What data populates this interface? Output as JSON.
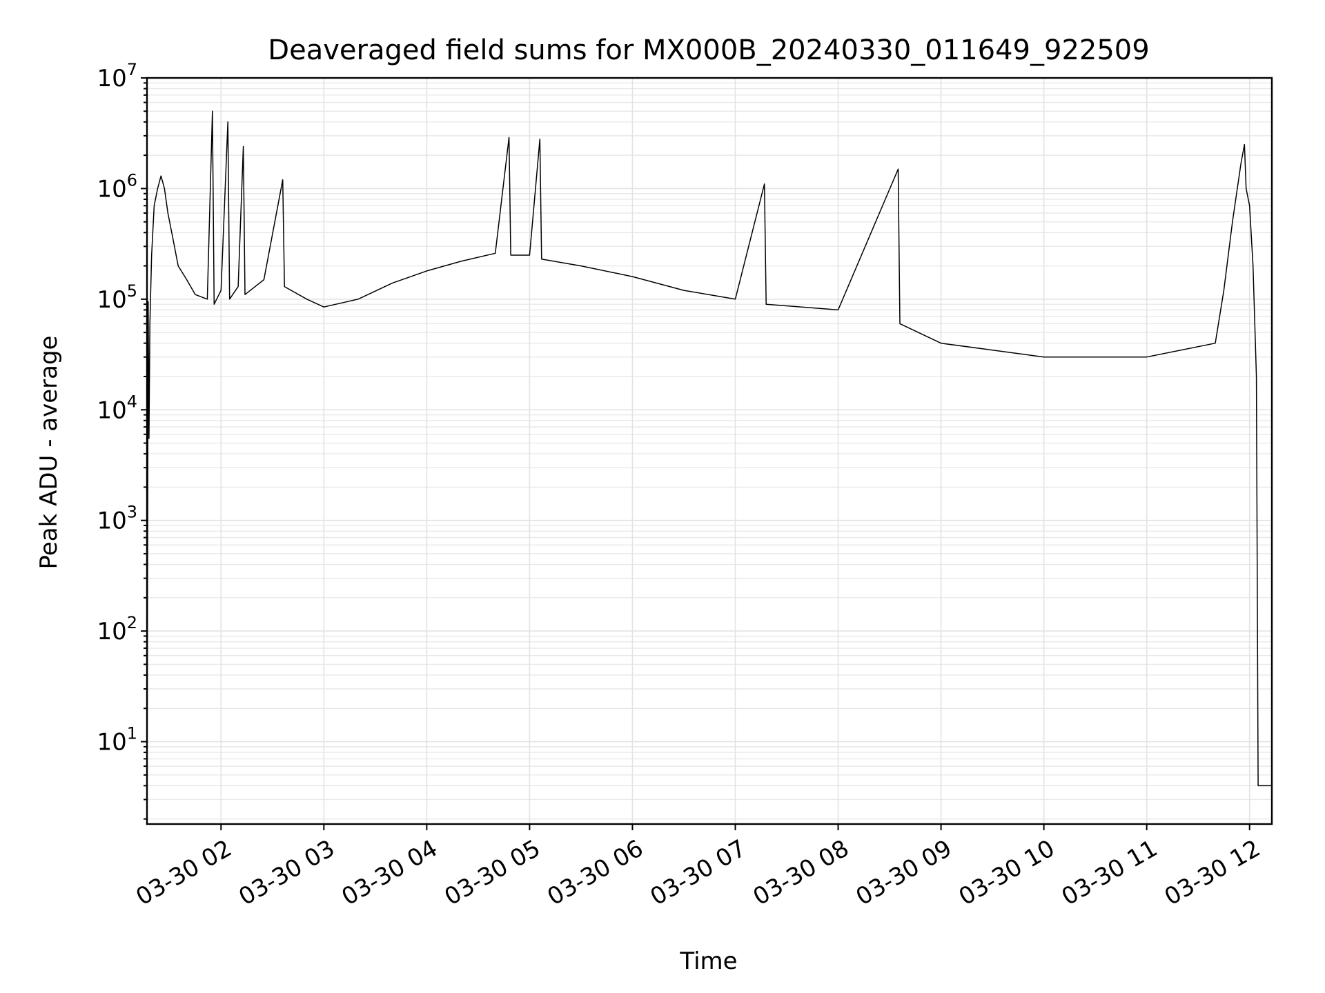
{
  "chart_data": {
    "type": "line",
    "title": "Deaveraged field sums for MX000B_20240330_011649_922509",
    "xlabel": "Time",
    "ylabel": "Peak ADU - average",
    "yscale": "log",
    "ylim": [
      1.8,
      10000000
    ],
    "xlim": [
      "2024-03-30 01:16:49",
      "2024-03-30 12:13:00"
    ],
    "grid": "major and minor, light gray",
    "legend": "none",
    "line_color": "#000000",
    "x_ticks": [
      "03-30 02",
      "03-30 03",
      "03-30 04",
      "03-30 05",
      "03-30 06",
      "03-30 07",
      "03-30 08",
      "03-30 09",
      "03-30 10",
      "03-30 11",
      "03-30 12"
    ],
    "y_ticks": [
      {
        "base": "10",
        "exp": "1"
      },
      {
        "base": "10",
        "exp": "2"
      },
      {
        "base": "10",
        "exp": "3"
      },
      {
        "base": "10",
        "exp": "4"
      },
      {
        "base": "10",
        "exp": "5"
      },
      {
        "base": "10",
        "exp": "6"
      },
      {
        "base": "10",
        "exp": "7"
      }
    ],
    "series": [
      {
        "points": [
          [
            "2024-03-30 01:16:50",
            1.8
          ],
          [
            "2024-03-30 01:17:30",
            95000
          ],
          [
            "2024-03-30 01:18:00",
            5500
          ],
          [
            "2024-03-30 01:18:30",
            60000
          ],
          [
            "2024-03-30 01:19:30",
            250000
          ],
          [
            "2024-03-30 01:21:00",
            700000
          ],
          [
            "2024-03-30 01:23:00",
            1000000
          ],
          [
            "2024-03-30 01:25:00",
            1300000
          ],
          [
            "2024-03-30 01:27:00",
            1000000
          ],
          [
            "2024-03-30 01:29:00",
            600000
          ],
          [
            "2024-03-30 01:32:00",
            350000
          ],
          [
            "2024-03-30 01:35:00",
            200000
          ],
          [
            "2024-03-30 01:40:00",
            150000
          ],
          [
            "2024-03-30 01:45:00",
            110000
          ],
          [
            "2024-03-30 01:52:00",
            100000
          ],
          [
            "2024-03-30 01:55:00",
            5000000
          ],
          [
            "2024-03-30 01:56:00",
            90000
          ],
          [
            "2024-03-30 02:00:00",
            120000
          ],
          [
            "2024-03-30 02:04:00",
            4000000
          ],
          [
            "2024-03-30 02:05:00",
            100000
          ],
          [
            "2024-03-30 02:10:00",
            130000
          ],
          [
            "2024-03-30 02:13:00",
            2400000
          ],
          [
            "2024-03-30 02:14:00",
            110000
          ],
          [
            "2024-03-30 02:25:00",
            150000
          ],
          [
            "2024-03-30 02:36:00",
            1200000
          ],
          [
            "2024-03-30 02:37:00",
            130000
          ],
          [
            "2024-03-30 02:50:00",
            100000
          ],
          [
            "2024-03-30 03:00:00",
            85000
          ],
          [
            "2024-03-30 03:20:00",
            100000
          ],
          [
            "2024-03-30 03:40:00",
            140000
          ],
          [
            "2024-03-30 04:00:00",
            180000
          ],
          [
            "2024-03-30 04:20:00",
            220000
          ],
          [
            "2024-03-30 04:40:00",
            260000
          ],
          [
            "2024-03-30 04:48:00",
            2900000
          ],
          [
            "2024-03-30 04:49:00",
            250000
          ],
          [
            "2024-03-30 05:00:00",
            250000
          ],
          [
            "2024-03-30 05:06:00",
            2800000
          ],
          [
            "2024-03-30 05:07:00",
            230000
          ],
          [
            "2024-03-30 05:30:00",
            200000
          ],
          [
            "2024-03-30 06:00:00",
            160000
          ],
          [
            "2024-03-30 06:30:00",
            120000
          ],
          [
            "2024-03-30 07:00:00",
            100000
          ],
          [
            "2024-03-30 07:17:00",
            1100000
          ],
          [
            "2024-03-30 07:18:00",
            90000
          ],
          [
            "2024-03-30 08:00:00",
            80000
          ],
          [
            "2024-03-30 08:35:00",
            1500000
          ],
          [
            "2024-03-30 08:36:00",
            60000
          ],
          [
            "2024-03-30 09:00:00",
            40000
          ],
          [
            "2024-03-30 10:00:00",
            30000
          ],
          [
            "2024-03-30 11:00:00",
            30000
          ],
          [
            "2024-03-30 11:40:00",
            40000
          ],
          [
            "2024-03-30 11:45:00",
            120000
          ],
          [
            "2024-03-30 11:50:00",
            500000
          ],
          [
            "2024-03-30 11:55:00",
            1700000
          ],
          [
            "2024-03-30 11:57:00",
            2500000
          ],
          [
            "2024-03-30 11:58:00",
            1000000
          ],
          [
            "2024-03-30 12:00:00",
            700000
          ],
          [
            "2024-03-30 12:02:00",
            200000
          ],
          [
            "2024-03-30 12:04:00",
            20000
          ],
          [
            "2024-03-30 12:05:00",
            4
          ],
          [
            "2024-03-30 12:13:00",
            4
          ]
        ]
      }
    ]
  }
}
